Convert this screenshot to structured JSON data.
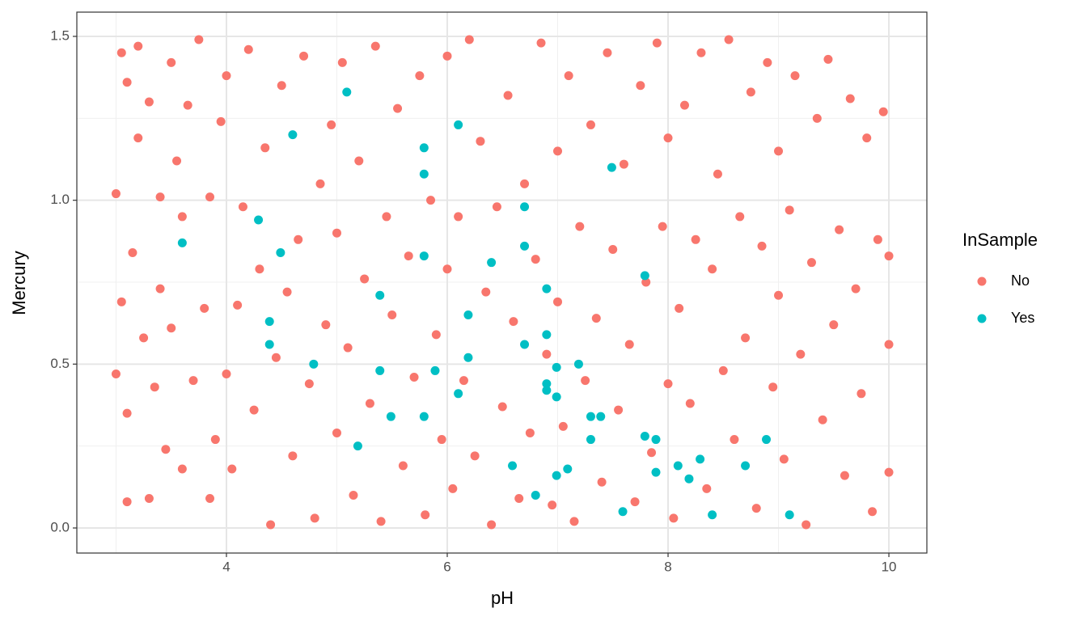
{
  "chart_data": {
    "type": "scatter",
    "x_label": "pH",
    "y_label": "Mercury",
    "legend_title": "InSample",
    "xlim": [
      2.645,
      10.344
    ],
    "ylim": [
      -0.0765,
      1.574
    ],
    "xticks": [
      4,
      6,
      8,
      10
    ],
    "yticks": [
      {
        "value": 0,
        "label": "0.0"
      },
      {
        "value": 0.5,
        "label": "0.5"
      },
      {
        "value": 1,
        "label": "1.0"
      },
      {
        "value": 1.5,
        "label": "1.5"
      }
    ],
    "xminor": [
      3,
      5,
      7,
      9
    ],
    "yminor": [
      0.25,
      0.75,
      1.25
    ],
    "grid": true,
    "legend": "right",
    "series": [
      {
        "name": "No",
        "color": "#F8766D",
        "x": [
          3.0,
          3.0,
          3.05,
          3.05,
          3.1,
          3.1,
          3.1,
          3.15,
          3.2,
          3.2,
          3.25,
          3.3,
          3.3,
          3.35,
          3.4,
          3.4,
          3.45,
          3.5,
          3.5,
          3.55,
          3.6,
          3.6,
          3.65,
          3.7,
          3.75,
          3.8,
          3.85,
          3.85,
          3.9,
          3.95,
          4.0,
          4.0,
          4.05,
          4.1,
          4.15,
          4.2,
          4.25,
          4.3,
          4.35,
          4.4,
          4.45,
          4.5,
          4.55,
          4.6,
          4.65,
          4.7,
          4.75,
          4.8,
          4.85,
          4.9,
          4.95,
          5.0,
          5.0,
          5.05,
          5.1,
          5.15,
          5.2,
          5.25,
          5.3,
          5.35,
          5.4,
          5.45,
          5.5,
          5.55,
          5.6,
          5.65,
          5.7,
          5.75,
          5.8,
          5.85,
          5.9,
          5.95,
          6.0,
          6.0,
          6.05,
          6.1,
          6.15,
          6.2,
          6.25,
          6.3,
          6.35,
          6.4,
          6.45,
          6.5,
          6.55,
          6.6,
          6.65,
          6.7,
          6.75,
          6.8,
          6.85,
          6.9,
          6.95,
          7.0,
          7.0,
          7.05,
          7.1,
          7.15,
          7.2,
          7.25,
          7.3,
          7.35,
          7.4,
          7.45,
          7.5,
          7.55,
          7.6,
          7.65,
          7.7,
          7.75,
          7.8,
          7.85,
          7.9,
          7.95,
          8.0,
          8.0,
          8.05,
          8.1,
          8.15,
          8.2,
          8.25,
          8.3,
          8.35,
          8.4,
          8.45,
          8.5,
          8.55,
          8.6,
          8.65,
          8.7,
          8.75,
          8.8,
          8.85,
          8.9,
          8.95,
          9.0,
          9.0,
          9.05,
          9.1,
          9.15,
          9.2,
          9.25,
          9.3,
          9.35,
          9.4,
          9.45,
          9.5,
          9.55,
          9.6,
          9.65,
          9.7,
          9.75,
          9.8,
          9.85,
          9.9,
          9.95,
          10.0,
          10.0,
          10.0
        ],
        "values": [
          0.47,
          1.02,
          1.45,
          0.69,
          0.08,
          1.36,
          0.35,
          0.84,
          1.47,
          1.19,
          0.58,
          0.09,
          1.3,
          0.43,
          1.01,
          0.73,
          0.24,
          1.42,
          0.61,
          1.12,
          0.18,
          0.95,
          1.29,
          0.45,
          1.49,
          0.67,
          0.09,
          1.01,
          0.27,
          1.24,
          0.47,
          1.38,
          0.18,
          0.68,
          0.98,
          1.46,
          0.36,
          0.79,
          1.16,
          0.01,
          0.52,
          1.35,
          0.72,
          0.22,
          0.88,
          1.44,
          0.44,
          0.03,
          1.05,
          0.62,
          1.23,
          0.29,
          0.9,
          1.42,
          0.55,
          0.1,
          1.12,
          0.76,
          0.38,
          1.47,
          0.02,
          0.95,
          0.65,
          1.28,
          0.19,
          0.83,
          0.46,
          1.38,
          0.04,
          1.0,
          0.59,
          0.27,
          1.44,
          0.79,
          0.12,
          0.95,
          0.45,
          1.49,
          0.22,
          1.18,
          0.72,
          0.01,
          0.98,
          0.37,
          1.32,
          0.63,
          0.09,
          1.05,
          0.29,
          0.82,
          1.48,
          0.53,
          0.07,
          1.15,
          0.69,
          0.31,
          1.38,
          0.02,
          0.92,
          0.45,
          1.23,
          0.64,
          0.14,
          1.45,
          0.85,
          0.36,
          1.11,
          0.56,
          0.08,
          1.35,
          0.75,
          0.23,
          1.48,
          0.92,
          0.44,
          1.19,
          0.03,
          0.67,
          1.29,
          0.38,
          0.88,
          1.45,
          0.12,
          0.79,
          1.08,
          0.48,
          1.49,
          0.27,
          0.95,
          0.58,
          1.33,
          0.06,
          0.86,
          1.42,
          0.43,
          1.15,
          0.71,
          0.21,
          0.97,
          1.38,
          0.53,
          0.01,
          0.81,
          1.25,
          0.33,
          1.43,
          0.62,
          0.91,
          0.16,
          1.31,
          0.73,
          0.41,
          1.19,
          0.05,
          0.88,
          1.27,
          0.56,
          0.17,
          0.83
        ]
      },
      {
        "name": "Yes",
        "color": "#00BFC4",
        "x": [
          5.09,
          4.6,
          6.1,
          5.79,
          7.49,
          5.79,
          6.7,
          4.29,
          3.6,
          6.7,
          4.49,
          5.79,
          6.4,
          7.79,
          6.9,
          5.39,
          6.19,
          4.39,
          6.9,
          4.39,
          6.7,
          6.19,
          4.79,
          7.19,
          6.99,
          5.39,
          5.89,
          6.9,
          6.9,
          6.1,
          6.99,
          5.49,
          5.79,
          7.3,
          7.39,
          7.3,
          7.79,
          7.89,
          8.89,
          5.19,
          8.29,
          6.59,
          8.09,
          8.7,
          7.09,
          6.99,
          7.89,
          8.19,
          6.8,
          7.59,
          8.4,
          9.1
        ],
        "values": [
          1.33,
          1.2,
          1.23,
          1.16,
          1.1,
          1.08,
          0.98,
          0.94,
          0.87,
          0.86,
          0.84,
          0.83,
          0.81,
          0.77,
          0.73,
          0.71,
          0.65,
          0.63,
          0.59,
          0.56,
          0.56,
          0.52,
          0.5,
          0.5,
          0.49,
          0.48,
          0.48,
          0.44,
          0.42,
          0.41,
          0.4,
          0.34,
          0.34,
          0.34,
          0.34,
          0.27,
          0.28,
          0.27,
          0.27,
          0.25,
          0.21,
          0.19,
          0.19,
          0.19,
          0.18,
          0.16,
          0.17,
          0.15,
          0.1,
          0.05,
          0.04,
          0.04
        ]
      }
    ]
  }
}
